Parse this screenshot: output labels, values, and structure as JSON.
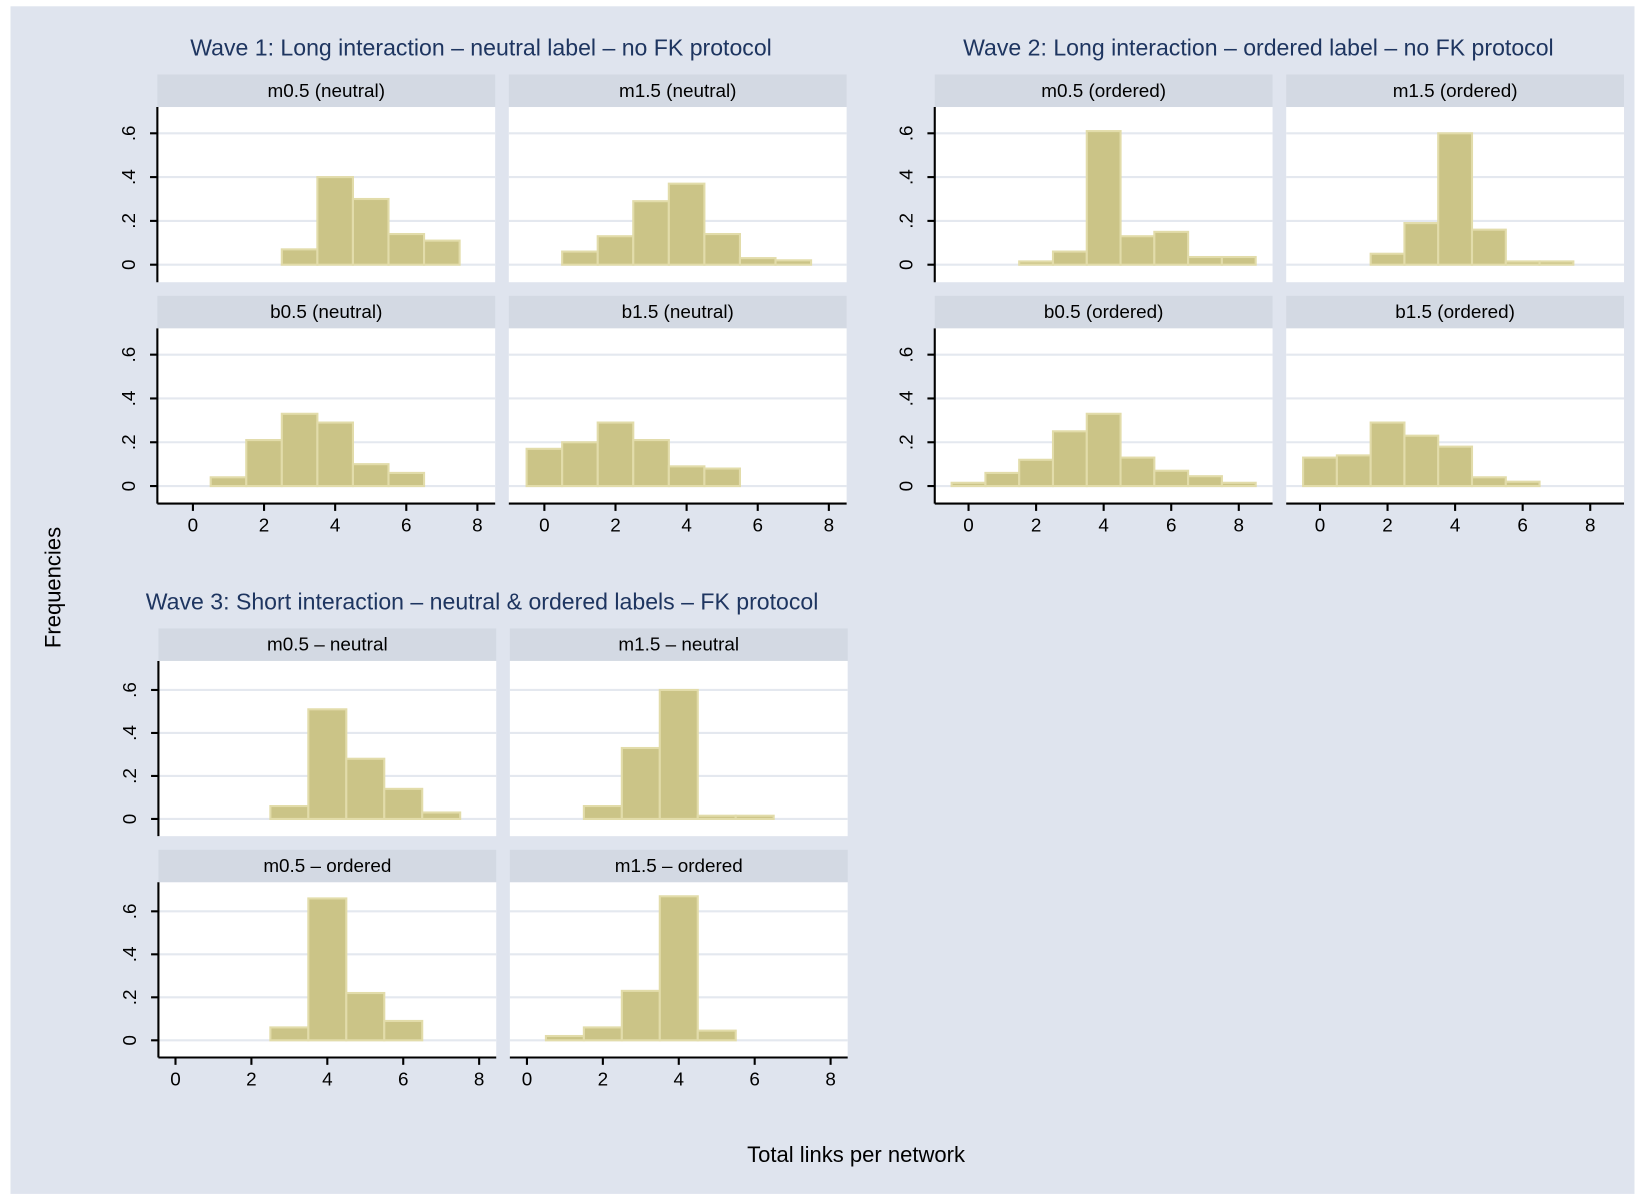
{
  "ylabel": "Frequencies",
  "xlabel": "Total links per network",
  "chart_data": [
    {
      "type": "histogram",
      "title": "Wave 1: Long interaction – neutral label – no FK protocol",
      "color": "#cbc487",
      "grid": true,
      "xlim": [
        -1,
        8.5
      ],
      "xticks": [
        0,
        2,
        4,
        6,
        8
      ],
      "ylim": [
        -0.08,
        0.72
      ],
      "yticks": [
        0,
        {
          "value": 0.2,
          "label": ".2"
        },
        {
          "value": 0.4,
          "label": ".4"
        },
        {
          "value": 0.6,
          "label": ".6"
        }
      ],
      "panels": [
        {
          "title": "m0.5 (neutral)",
          "bins": [
            2.5,
            3.5,
            4.5,
            5.5,
            6.5,
            7.5
          ],
          "values": [
            0.07,
            0.4,
            0.3,
            0.14,
            0.11
          ]
        },
        {
          "title": "m1.5 (neutral)",
          "bins": [
            0.5,
            1.5,
            2.5,
            3.5,
            4.5,
            5.5,
            6.5,
            7.5
          ],
          "values": [
            0.06,
            0.13,
            0.29,
            0.37,
            0.14,
            0.03,
            0.02
          ]
        },
        {
          "title": "b0.5 (neutral)",
          "bins": [
            0.5,
            1.5,
            2.5,
            3.5,
            4.5,
            5.5,
            6.5
          ],
          "values": [
            0.04,
            0.21,
            0.33,
            0.29,
            0.1,
            0.06
          ]
        },
        {
          "title": "b1.5 (neutral)",
          "bins": [
            -0.5,
            0.5,
            1.5,
            2.5,
            3.5,
            4.5,
            5.5
          ],
          "values": [
            0.17,
            0.2,
            0.29,
            0.21,
            0.09,
            0.08
          ]
        }
      ]
    },
    {
      "type": "histogram",
      "title": "Wave 2: Long interaction – ordered label – no FK protocol",
      "color": "#cbc487",
      "grid": true,
      "xlim": [
        -1,
        9
      ],
      "xticks": [
        0,
        2,
        4,
        6,
        8
      ],
      "ylim": [
        -0.08,
        0.72
      ],
      "yticks": [
        0,
        {
          "value": 0.2,
          "label": ".2"
        },
        {
          "value": 0.4,
          "label": ".4"
        },
        {
          "value": 0.6,
          "label": ".6"
        }
      ],
      "panels": [
        {
          "title": "m0.5 (ordered)",
          "bins": [
            1.5,
            2.5,
            3.5,
            4.5,
            5.5,
            6.5,
            7.5,
            8.5
          ],
          "values": [
            0.015,
            0.06,
            0.61,
            0.13,
            0.15,
            0.035,
            0.035
          ]
        },
        {
          "title": "m1.5 (ordered)",
          "bins": [
            1.5,
            2.5,
            3.5,
            4.5,
            5.5,
            6.5,
            7.5
          ],
          "values": [
            0.05,
            0.19,
            0.6,
            0.16,
            0.015,
            0.015
          ]
        },
        {
          "title": "b0.5 (ordered)",
          "bins": [
            -0.5,
            0.5,
            1.5,
            2.5,
            3.5,
            4.5,
            5.5,
            6.5,
            7.5,
            8.5
          ],
          "values": [
            0.015,
            0.06,
            0.12,
            0.25,
            0.33,
            0.13,
            0.07,
            0.045,
            0.015
          ]
        },
        {
          "title": "b1.5 (ordered)",
          "bins": [
            -0.5,
            0.5,
            1.5,
            2.5,
            3.5,
            4.5,
            5.5,
            6.5
          ],
          "values": [
            0.13,
            0.14,
            0.29,
            0.23,
            0.18,
            0.04,
            0.02
          ]
        }
      ]
    },
    {
      "type": "histogram",
      "title": "Wave 3: Short interaction – neutral & ordered labels – FK protocol",
      "color": "#cbc487",
      "grid": true,
      "xlim": [
        -0.45,
        8.45
      ],
      "xticks": [
        0,
        2,
        4,
        6,
        8
      ],
      "ylim": [
        -0.08,
        0.735
      ],
      "yticks": [
        0,
        {
          "value": 0.2,
          "label": ".2"
        },
        {
          "value": 0.4,
          "label": ".4"
        },
        {
          "value": 0.6,
          "label": ".6"
        }
      ],
      "panels": [
        {
          "title": "m0.5 – neutral",
          "bins": [
            2.5,
            3.5,
            4.5,
            5.5,
            6.5,
            7.5
          ],
          "values": [
            0.06,
            0.51,
            0.28,
            0.14,
            0.03
          ]
        },
        {
          "title": "m1.5 – neutral",
          "bins": [
            1.5,
            2.5,
            3.5,
            4.5,
            5.5,
            6.5
          ],
          "values": [
            0.06,
            0.33,
            0.6,
            0.015,
            0.015
          ]
        },
        {
          "title": "m0.5 – ordered",
          "bins": [
            2.5,
            3.5,
            4.5,
            5.5,
            6.5
          ],
          "values": [
            0.06,
            0.66,
            0.22,
            0.09
          ]
        },
        {
          "title": "m1.5 – ordered",
          "bins": [
            0.5,
            1.5,
            2.5,
            3.5,
            4.5,
            5.5
          ],
          "values": [
            0.02,
            0.06,
            0.23,
            0.67,
            0.045
          ]
        }
      ]
    }
  ]
}
